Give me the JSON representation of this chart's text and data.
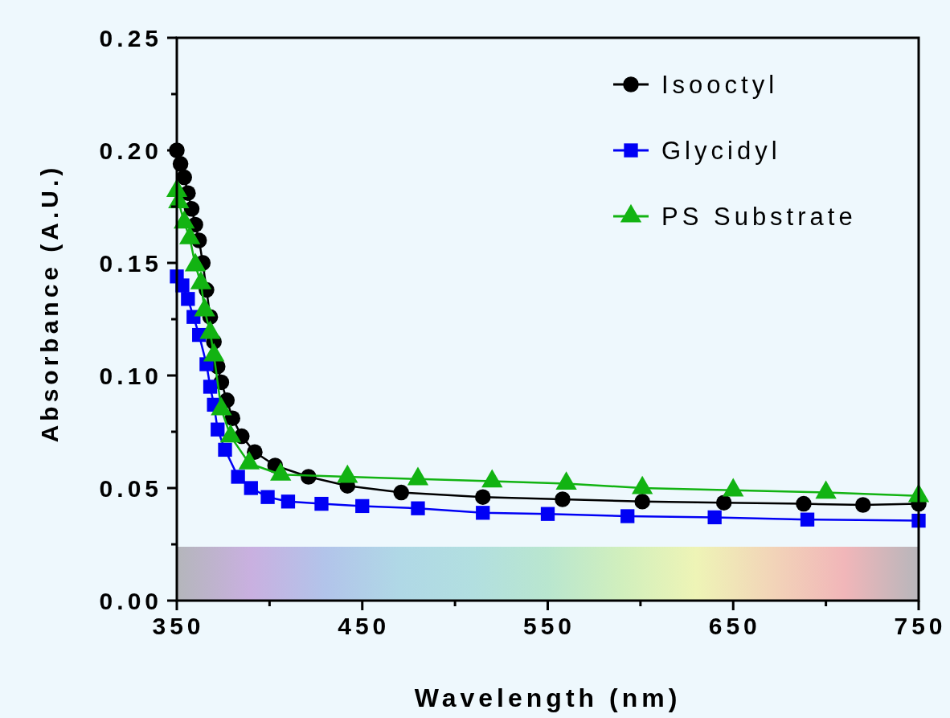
{
  "chart_data": {
    "type": "line",
    "xlabel": "Wavelength (nm)",
    "ylabel": "Absorbance (A.U.)",
    "xlim": [
      350,
      750
    ],
    "xticks": [
      350,
      {
        "value": 400,
        "label": null
      },
      450,
      {
        "value": 500,
        "label": null
      },
      550,
      {
        "value": 600,
        "label": null
      },
      650,
      {
        "value": 700,
        "label": null
      },
      750
    ],
    "ylim": [
      0,
      0.25
    ],
    "yticks": [
      {
        "value": 0,
        "label": "0.00"
      },
      {
        "value": 0.025,
        "label": null
      },
      {
        "value": 0.05,
        "label": "0.05"
      },
      {
        "value": 0.075,
        "label": null
      },
      {
        "value": 0.1,
        "label": "0.10"
      },
      {
        "value": 0.125,
        "label": null
      },
      {
        "value": 0.15,
        "label": "0.15"
      },
      {
        "value": 0.175,
        "label": null
      },
      {
        "value": 0.2,
        "label": "0.20"
      },
      {
        "value": 0.225,
        "label": null
      },
      {
        "value": 0.25,
        "label": "0.25"
      }
    ],
    "grid": false,
    "legend": "top right",
    "series": [
      {
        "name": "Isooctyl",
        "color": "#000000",
        "marker": "circle",
        "x": [
          350,
          352,
          354,
          356,
          358,
          360,
          362,
          364,
          366,
          368,
          370,
          372,
          374,
          377,
          380,
          385,
          392,
          403,
          421,
          442,
          471,
          515,
          558,
          601,
          645,
          688,
          720,
          750
        ],
        "values": [
          0.2,
          0.194,
          0.188,
          0.181,
          0.174,
          0.167,
          0.16,
          0.15,
          0.138,
          0.126,
          0.115,
          0.104,
          0.097,
          0.089,
          0.081,
          0.073,
          0.066,
          0.06,
          0.055,
          0.051,
          0.048,
          0.046,
          0.045,
          0.044,
          0.0435,
          0.043,
          0.0425,
          0.043
        ]
      },
      {
        "name": "Glycidyl",
        "color": "#0000f5",
        "marker": "square",
        "x": [
          350,
          353,
          356,
          359,
          362,
          366,
          368,
          370,
          372,
          376,
          383,
          390,
          399,
          410,
          428,
          450,
          480,
          515,
          550,
          593,
          640,
          690,
          750
        ],
        "values": [
          0.144,
          0.14,
          0.134,
          0.126,
          0.118,
          0.105,
          0.095,
          0.087,
          0.076,
          0.067,
          0.055,
          0.05,
          0.046,
          0.044,
          0.043,
          0.042,
          0.041,
          0.039,
          0.0385,
          0.0375,
          0.037,
          0.036,
          0.0355
        ]
      },
      {
        "name": "PS Substrate",
        "color": "#12b312",
        "marker": "triangle",
        "x": [
          350,
          351,
          354,
          357,
          360,
          363,
          365,
          368,
          370,
          374,
          379,
          389,
          406,
          442,
          480,
          520,
          560,
          601,
          650,
          700,
          750
        ],
        "values": [
          0.182,
          0.177,
          0.168,
          0.161,
          0.149,
          0.141,
          0.129,
          0.119,
          0.109,
          0.085,
          0.073,
          0.061,
          0.056,
          0.055,
          0.054,
          0.053,
          0.052,
          0.05,
          0.049,
          0.048,
          0.0465
        ]
      }
    ]
  }
}
